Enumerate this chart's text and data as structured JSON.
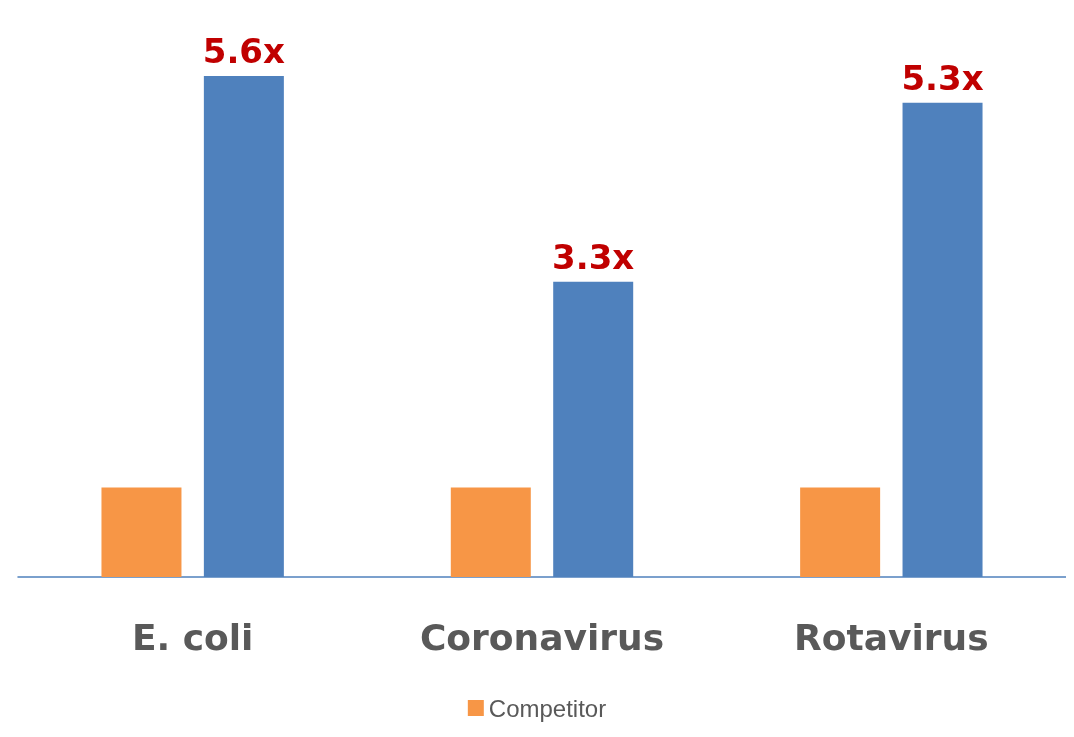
{
  "chart_data": {
    "type": "bar",
    "categories": [
      "E. coli",
      "Coronavirus",
      "Rotavirus"
    ],
    "series": [
      {
        "name": "Competitor",
        "color": "#f79646",
        "values": [
          1,
          1,
          1
        ]
      },
      {
        "color": "#4f81bd",
        "values": [
          5.6,
          3.3,
          5.3
        ],
        "value_labels": [
          "5.6x",
          "3.3x",
          "5.3x"
        ]
      }
    ],
    "ylim": [
      0,
      5.6
    ],
    "tick_labels": "x",
    "legend": "bottom"
  }
}
